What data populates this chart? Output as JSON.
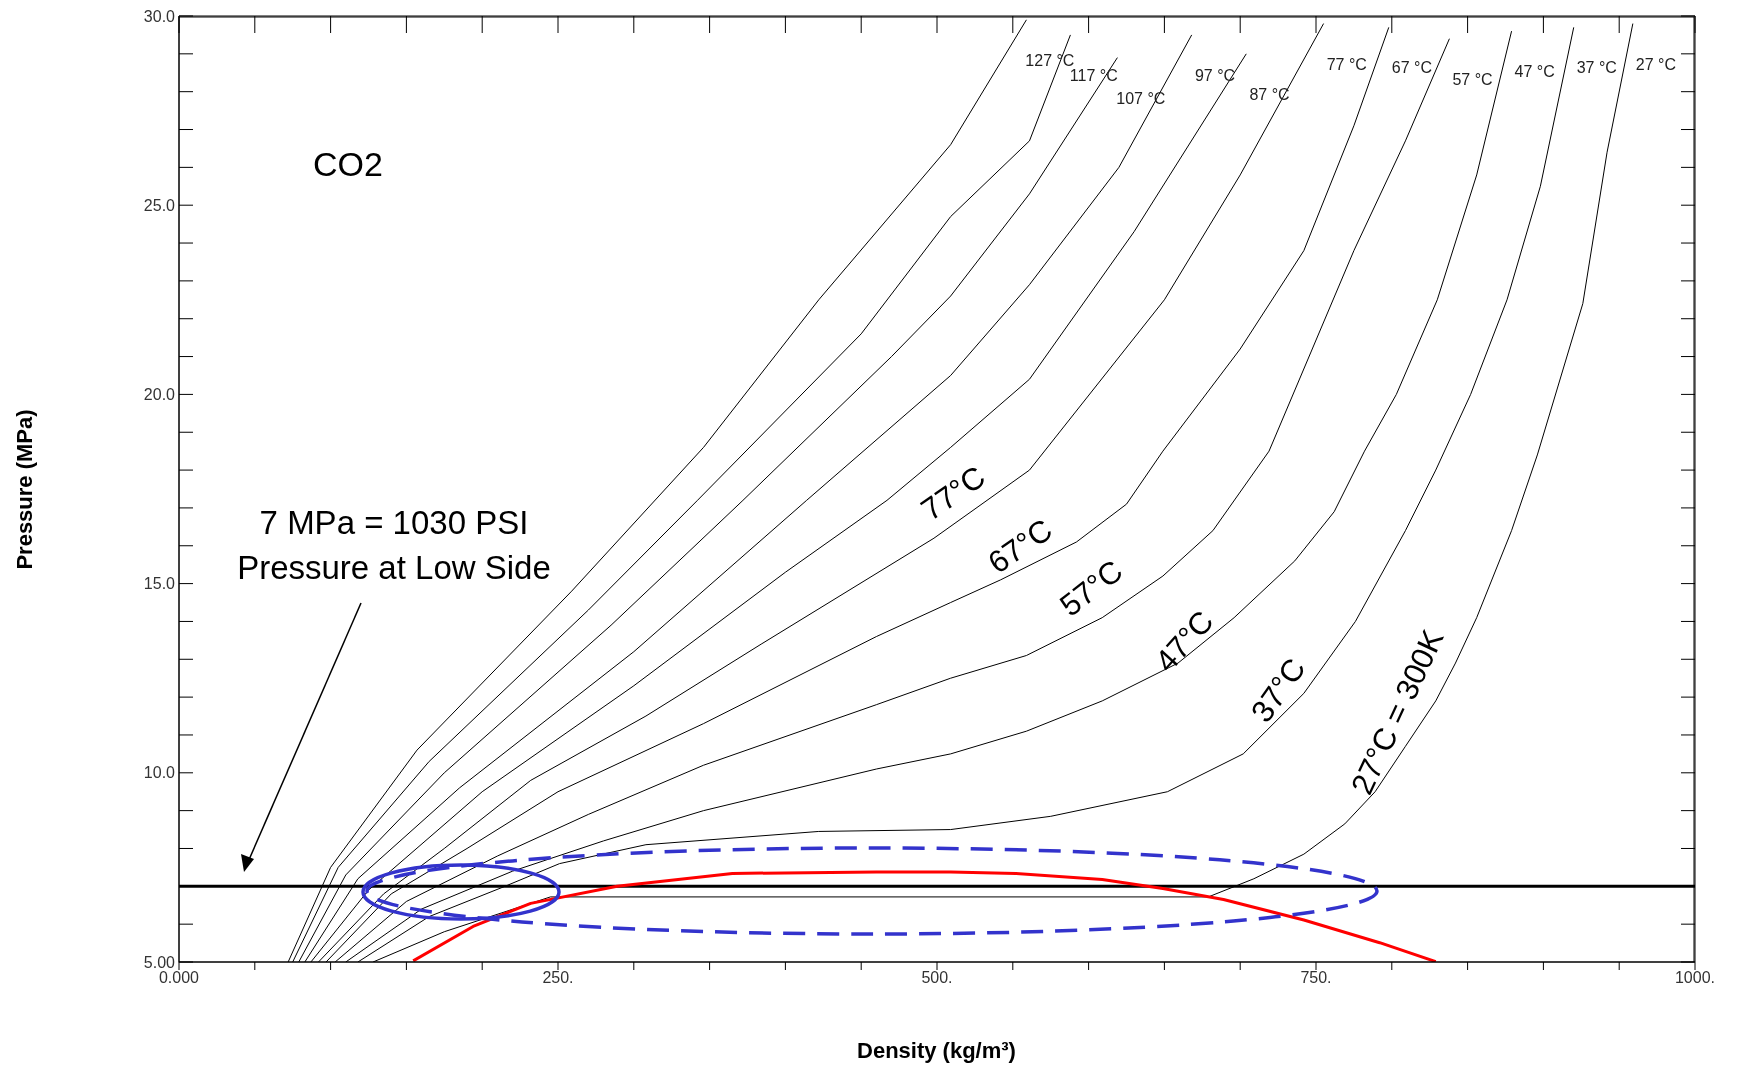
{
  "chart_data": {
    "type": "line",
    "title": "CO2",
    "xlabel": "Density (kg/m³)",
    "ylabel": "Pressure (MPa)",
    "xlim": [
      0,
      1000
    ],
    "xticks": [
      {
        "value": 0,
        "label": "0.000"
      },
      {
        "value": 50,
        "label": null
      },
      {
        "value": 100,
        "label": null
      },
      {
        "value": 150,
        "label": null
      },
      {
        "value": 200,
        "label": null
      },
      {
        "value": 250,
        "label": "250."
      },
      {
        "value": 300,
        "label": null
      },
      {
        "value": 350,
        "label": null
      },
      {
        "value": 400,
        "label": null
      },
      {
        "value": 450,
        "label": null
      },
      {
        "value": 500,
        "label": "500."
      },
      {
        "value": 550,
        "label": null
      },
      {
        "value": 600,
        "label": null
      },
      {
        "value": 650,
        "label": null
      },
      {
        "value": 700,
        "label": null
      },
      {
        "value": 750,
        "label": "750."
      },
      {
        "value": 800,
        "label": null
      },
      {
        "value": 850,
        "label": null
      },
      {
        "value": 900,
        "label": null
      },
      {
        "value": 950,
        "label": null
      },
      {
        "value": 1000,
        "label": "1000."
      }
    ],
    "ylim": [
      5,
      30
    ],
    "yticks": [
      {
        "value": 5,
        "label": "5.00"
      },
      {
        "value": 6,
        "label": null
      },
      {
        "value": 7,
        "label": null
      },
      {
        "value": 8,
        "label": null
      },
      {
        "value": 9,
        "label": null
      },
      {
        "value": 10,
        "label": "10.0"
      },
      {
        "value": 11,
        "label": null
      },
      {
        "value": 12,
        "label": null
      },
      {
        "value": 13,
        "label": null
      },
      {
        "value": 14,
        "label": null
      },
      {
        "value": 15,
        "label": "15.0"
      },
      {
        "value": 16,
        "label": null
      },
      {
        "value": 17,
        "label": null
      },
      {
        "value": 18,
        "label": null
      },
      {
        "value": 19,
        "label": null
      },
      {
        "value": 20,
        "label": "20.0"
      },
      {
        "value": 21,
        "label": null
      },
      {
        "value": 22,
        "label": null
      },
      {
        "value": 23,
        "label": null
      },
      {
        "value": 24,
        "label": null
      },
      {
        "value": 25,
        "label": "25.0"
      },
      {
        "value": 26,
        "label": null
      },
      {
        "value": 27,
        "label": null
      },
      {
        "value": 28,
        "label": null
      },
      {
        "value": 29,
        "label": null
      },
      {
        "value": 30,
        "label": "30.0"
      }
    ],
    "marker": "none",
    "line_style": "solid",
    "legend": "top right",
    "series": [
      {
        "name": "127 °C",
        "color": "#000000",
        "x": [
          72,
          100,
          157,
          259,
          346,
          422,
          509,
          559
        ],
        "values": [
          5,
          7.5,
          10.6,
          14.8,
          18.6,
          22.5,
          26.6,
          29.9
        ]
      },
      {
        "name": "117 °C",
        "color": "#000000",
        "x": [
          75,
          105,
          165,
          270,
          342,
          450,
          509,
          561,
          588
        ],
        "values": [
          5,
          7.5,
          10.3,
          14.3,
          17.2,
          21.6,
          24.7,
          26.7,
          29.5
        ]
      },
      {
        "name": "107 °C",
        "color": "#000000",
        "x": [
          79,
          110,
          175,
          285,
          372,
          470,
          509,
          561,
          619
        ],
        "values": [
          5,
          7.3,
          10,
          13.9,
          17.2,
          21,
          22.6,
          25.3,
          28.9
        ]
      },
      {
        "name": "97 °C",
        "color": "#000000",
        "x": [
          83,
          118,
          185,
          300,
          414,
          509,
          561,
          620,
          668
        ],
        "values": [
          5,
          7.2,
          9.6,
          13.2,
          17.2,
          20.5,
          22.9,
          26,
          29.5
        ]
      },
      {
        "name": "87 °C",
        "color": "#000000",
        "x": [
          87,
          125,
          200,
          300,
          400,
          467,
          509,
          561,
          630,
          704
        ],
        "values": [
          5,
          6.9,
          9.5,
          12.3,
          15.3,
          17.2,
          18.6,
          20.4,
          24.3,
          29
        ]
      },
      {
        "name": "77 °C",
        "color": "#000000",
        "x": [
          92,
          135,
          175,
          232,
          308,
          384,
          498,
          561,
          650,
          700,
          755
        ],
        "values": [
          5,
          6.8,
          8,
          9.8,
          11.5,
          13.4,
          16.2,
          18,
          22.5,
          25.8,
          29.8
        ]
      },
      {
        "name": "67 °C",
        "color": "#000000",
        "x": [
          97,
          140,
          190,
          250,
          346,
          460,
          509,
          542,
          592,
          625,
          649,
          700,
          742,
          775,
          798
        ],
        "values": [
          5,
          6.8,
          8,
          9.5,
          11.3,
          13.6,
          14.5,
          15.1,
          16.1,
          17.1,
          18.5,
          21.2,
          23.8,
          27.1,
          29.7
        ]
      },
      {
        "name": "57 °C",
        "color": "#000000",
        "x": [
          103,
          150,
          210,
          270,
          346,
          460,
          509,
          559,
          609,
          649,
          682,
          719,
          775,
          809,
          838
        ],
        "values": [
          5,
          6.6,
          7.8,
          8.9,
          10.2,
          11.8,
          12.5,
          13.1,
          14.1,
          15.2,
          16.4,
          18.5,
          23.8,
          26.7,
          29.4
        ]
      },
      {
        "name": "47 °C",
        "color": "#000000",
        "x": [
          110,
          160,
          220,
          280,
          346,
          460,
          509,
          559,
          609,
          659,
          696,
          736,
          762,
          782,
          803,
          830,
          856,
          879
        ],
        "values": [
          5,
          6.4,
          7.4,
          8.2,
          9,
          10.1,
          10.5,
          11.1,
          11.9,
          12.9,
          14.1,
          15.6,
          16.9,
          18.5,
          20,
          22.5,
          25.8,
          29.6
        ]
      },
      {
        "name": "37 °C",
        "color": "#000000",
        "x": [
          118,
          165,
          215,
          251,
          308,
          422,
          509,
          575,
          652,
          702,
          742,
          776,
          809,
          829,
          852,
          876,
          898,
          920
        ],
        "values": [
          5,
          6.2,
          7,
          7.6,
          8.1,
          8.45,
          8.5,
          8.85,
          9.5,
          10.5,
          12.1,
          14,
          16.4,
          18,
          20,
          22.5,
          25.5,
          29.7
        ]
      },
      {
        "name": "27 °C",
        "color": "#000000",
        "x": [
          128,
          175,
          213,
          245,
          679,
          709,
          742,
          769,
          789,
          809,
          829,
          842,
          856,
          879,
          896,
          926,
          942,
          959
        ],
        "values": [
          5,
          5.8,
          6.3,
          6.72,
          6.72,
          7.2,
          7.85,
          8.65,
          9.5,
          10.7,
          11.9,
          12.9,
          14.1,
          16.4,
          18.4,
          22.4,
          26.4,
          29.8
        ]
      },
      {
        "color": "#ff0000",
        "x": [
          154.5,
          194,
          232,
          289,
          365,
          460,
          509,
          552,
          609,
          649,
          689,
          742,
          792,
          829
        ],
        "values": [
          5.03,
          5.94,
          6.55,
          7,
          7.34,
          7.38,
          7.38,
          7.34,
          7.18,
          6.94,
          6.65,
          6.11,
          5.51,
          5.01
        ]
      }
    ],
    "ref_lines": [
      {
        "axis": "y",
        "value": 7,
        "color": "#000000"
      }
    ],
    "annotations": [
      "7 MPa = 1030 PSI\nPressure at Low Side",
      "77°C",
      "67°C",
      "57°C",
      "47°C",
      "37°C",
      "27°C = 300K"
    ]
  }
}
